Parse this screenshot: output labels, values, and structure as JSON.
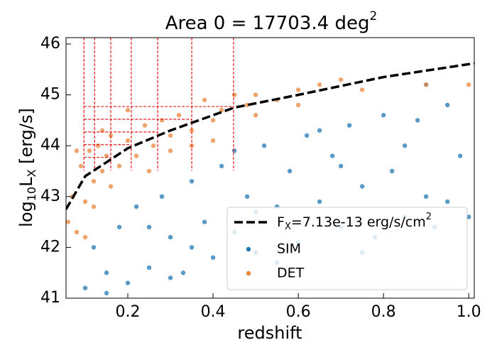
{
  "chart_data": {
    "type": "scatter",
    "title": "Area 0 = 17703.4 deg",
    "title_sup": "2",
    "xlabel": "redshift",
    "ylabel": "log",
    "ylabel_sub": "10",
    "ylabel_mid": "L",
    "ylabel_sub2": "X",
    "ylabel_rest": " [erg/s]",
    "xlim": [
      0.055,
      1.013
    ],
    "ylim": [
      41,
      46.126
    ],
    "xticks": [
      0.2,
      0.4,
      0.6,
      0.8,
      {
        "value": 1,
        "label": "1.0"
      }
    ],
    "yticks": [
      41,
      42,
      43,
      44,
      45,
      46
    ],
    "grid": false,
    "legend": "lower right",
    "bins": {
      "color": "#e8191b",
      "z_edges": [
        0.097,
        0.122,
        0.16,
        0.208,
        0.27,
        0.35,
        0.448
      ],
      "lx_edges": [
        43.51,
        43.77,
        44.02,
        44.27,
        44.52,
        44.77
      ]
    },
    "flux_limit": {
      "name": "F",
      "name_sub": "X",
      "name_rest": "=7.13e-13 erg/s/cm",
      "name_sup": "2",
      "color": "#000000",
      "x": [
        0.055,
        0.1,
        0.2,
        0.3,
        0.45,
        0.6,
        0.8,
        1.013
      ],
      "values": [
        42.75,
        43.4,
        43.95,
        44.3,
        44.75,
        45.0,
        45.35,
        45.62
      ]
    },
    "series": [
      {
        "name": "SIM",
        "color": "#1f77b4",
        "x": [
          0.1,
          0.12,
          0.15,
          0.18,
          0.2,
          0.22,
          0.25,
          0.28,
          0.3,
          0.33,
          0.35,
          0.38,
          0.4,
          0.42,
          0.45,
          0.48,
          0.5,
          0.52,
          0.55,
          0.58,
          0.6,
          0.62,
          0.65,
          0.68,
          0.7,
          0.72,
          0.75,
          0.78,
          0.8,
          0.82,
          0.85,
          0.88,
          0.9,
          0.92,
          0.95,
          0.98,
          1.0,
          0.15,
          0.25,
          0.35,
          0.45,
          0.55,
          0.65,
          0.75,
          0.85,
          0.95,
          0.3,
          0.5,
          0.7,
          0.9
        ],
        "values": [
          41.2,
          42.0,
          41.5,
          42.4,
          41.3,
          42.8,
          41.6,
          43.0,
          42.2,
          41.5,
          43.3,
          42.5,
          41.8,
          43.6,
          42.3,
          43.0,
          41.9,
          44.0,
          42.8,
          43.5,
          42.1,
          44.2,
          42.9,
          43.8,
          42.4,
          44.4,
          43.2,
          42.2,
          44.6,
          43.5,
          42.6,
          44.5,
          43.0,
          42.4,
          44.8,
          43.8,
          42.6,
          41.1,
          42.4,
          42.0,
          43.9,
          41.7,
          44.3,
          41.9,
          44.0,
          42.9,
          41.4,
          42.7,
          43.6,
          45.2
        ]
      },
      {
        "name": "DET",
        "color": "#e8863a",
        "x": [
          0.06,
          0.07,
          0.08,
          0.09,
          0.1,
          0.11,
          0.12,
          0.13,
          0.14,
          0.15,
          0.16,
          0.18,
          0.2,
          0.22,
          0.24,
          0.26,
          0.28,
          0.3,
          0.32,
          0.35,
          0.38,
          0.4,
          0.42,
          0.45,
          0.48,
          0.5,
          0.55,
          0.6,
          0.65,
          0.7,
          0.08,
          0.12,
          0.16,
          0.2,
          0.25,
          0.3,
          0.35,
          0.4,
          0.5,
          0.6,
          0.75,
          0.9,
          1.0,
          0.1,
          0.14
        ],
        "values": [
          42.5,
          43.0,
          42.3,
          43.6,
          42.9,
          43.9,
          43.3,
          44.0,
          43.5,
          43.8,
          44.2,
          43.6,
          44.1,
          43.8,
          44.4,
          44.0,
          44.5,
          44.2,
          44.6,
          44.3,
          44.9,
          44.5,
          44.7,
          45.0,
          44.8,
          45.0,
          44.9,
          45.1,
          45.2,
          45.3,
          43.9,
          42.8,
          43.2,
          44.7,
          43.5,
          43.9,
          44.0,
          44.1,
          44.6,
          44.8,
          45.1,
          45.2,
          45.2,
          42.2,
          44.3
        ]
      }
    ]
  }
}
